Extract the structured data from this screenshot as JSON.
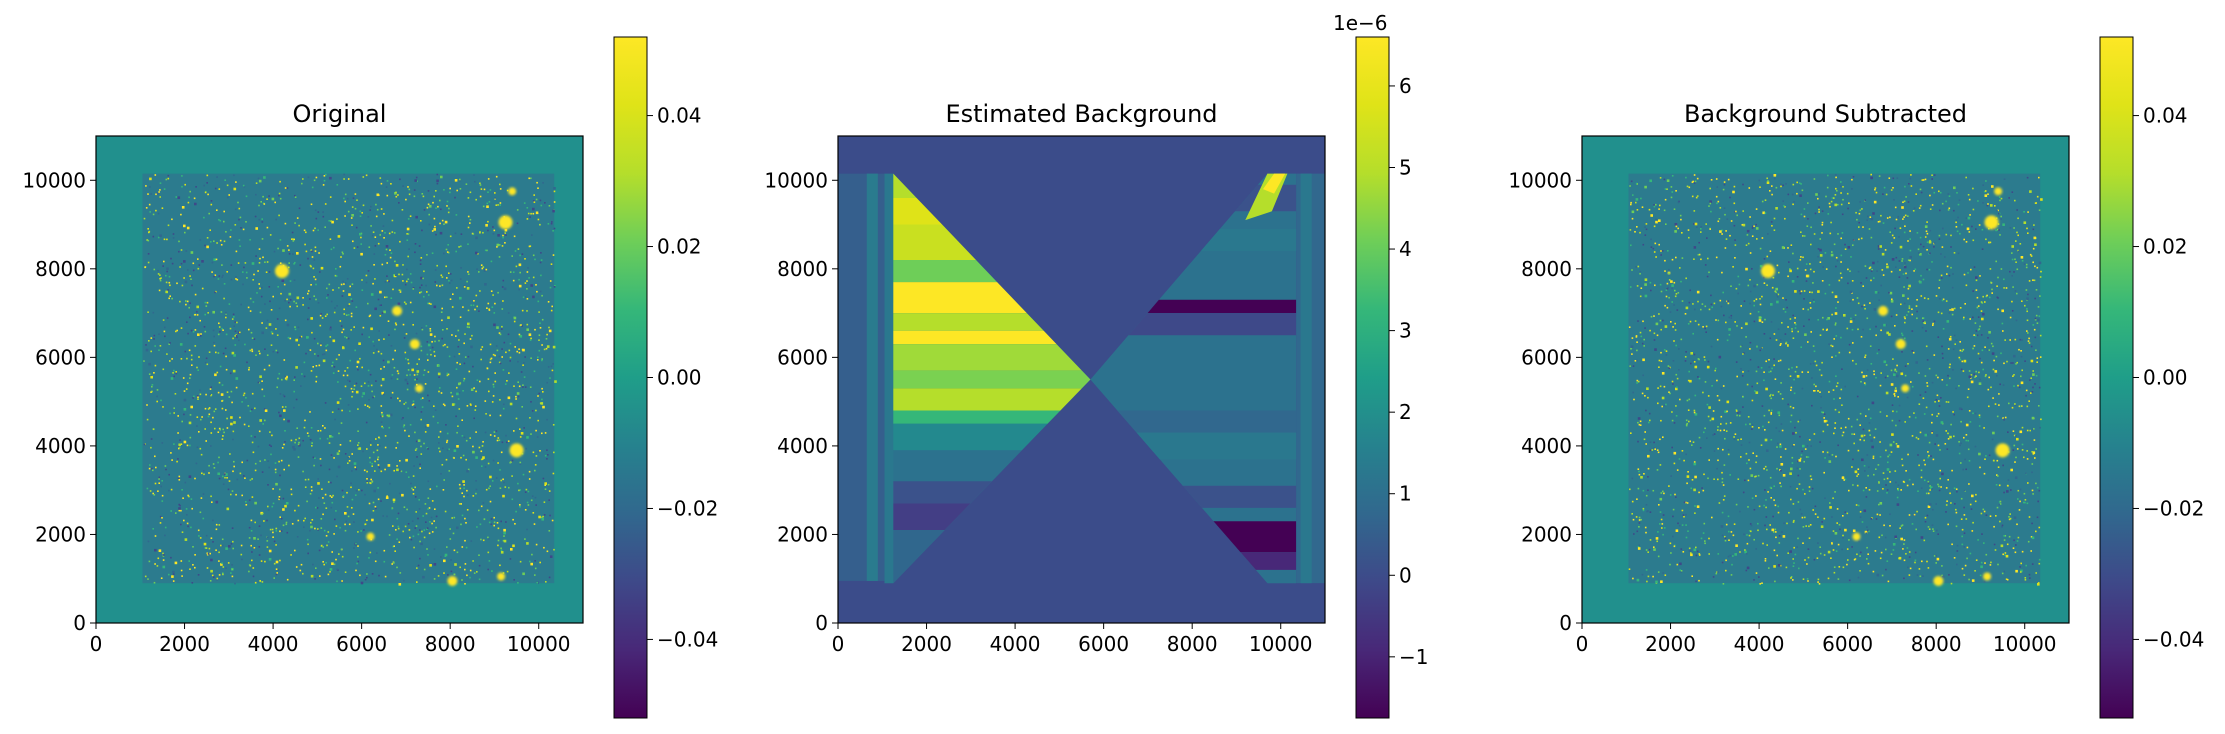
{
  "chart_data": [
    {
      "type": "heatmap",
      "title": "Original",
      "xlim": [
        0,
        11000
      ],
      "ylim": [
        0,
        11000
      ],
      "xticks": [
        "0",
        "2000",
        "4000",
        "6000",
        "8000",
        "10000"
      ],
      "yticks": [
        "0",
        "2000",
        "4000",
        "6000",
        "8000",
        "10000"
      ],
      "colormap": "viridis",
      "colorbar": {
        "range": [
          -0.052,
          0.052
        ],
        "ticks": [
          "−0.04",
          "−0.02",
          "0.00",
          "0.02",
          "0.04"
        ],
        "tick_values": [
          -0.04,
          -0.02,
          0.0,
          0.02,
          0.04
        ],
        "offset_text": ""
      },
      "image_region": {
        "x": [
          1050,
          10350
        ],
        "y": [
          900,
          10150
        ]
      },
      "bright_sources": [
        {
          "x": 9500,
          "y": 3900
        },
        {
          "x": 4200,
          "y": 7950
        },
        {
          "x": 9250,
          "y": 9050
        },
        {
          "x": 8050,
          "y": 950
        },
        {
          "x": 7200,
          "y": 6300
        },
        {
          "x": 6800,
          "y": 7050
        },
        {
          "x": 7300,
          "y": 5300
        },
        {
          "x": 9150,
          "y": 1050
        },
        {
          "x": 6200,
          "y": 1950
        },
        {
          "x": 9400,
          "y": 9750
        }
      ]
    },
    {
      "type": "heatmap",
      "title": "Estimated Background",
      "xlim": [
        0,
        11000
      ],
      "ylim": [
        0,
        11000
      ],
      "xticks": [
        "0",
        "2000",
        "4000",
        "6000",
        "8000",
        "10000"
      ],
      "yticks": [
        "0",
        "2000",
        "4000",
        "6000",
        "8000",
        "10000"
      ],
      "colormap": "viridis",
      "colorbar": {
        "range": [
          -1.75e-06,
          6.6e-06
        ],
        "ticks": [
          "−1",
          "0",
          "1",
          "2",
          "3",
          "4",
          "5",
          "6"
        ],
        "tick_values": [
          -1,
          0,
          1,
          2,
          3,
          4,
          5,
          6
        ],
        "offset_text": "1e−6"
      },
      "image_region": {
        "x": [
          1050,
          10350
        ],
        "y": [
          900,
          10150
        ]
      }
    },
    {
      "type": "heatmap",
      "title": "Background Subtracted",
      "xlim": [
        0,
        11000
      ],
      "ylim": [
        0,
        11000
      ],
      "xticks": [
        "0",
        "2000",
        "4000",
        "6000",
        "8000",
        "10000"
      ],
      "yticks": [
        "0",
        "2000",
        "4000",
        "6000",
        "8000",
        "10000"
      ],
      "colormap": "viridis",
      "colorbar": {
        "range": [
          -0.052,
          0.052
        ],
        "ticks": [
          "−0.04",
          "−0.02",
          "0.00",
          "0.02",
          "0.04"
        ],
        "tick_values": [
          -0.04,
          -0.02,
          0.0,
          0.02,
          0.04
        ],
        "offset_text": ""
      },
      "image_region": {
        "x": [
          1050,
          10350
        ],
        "y": [
          900,
          10150
        ]
      },
      "bright_sources": [
        {
          "x": 9500,
          "y": 3900
        },
        {
          "x": 4200,
          "y": 7950
        },
        {
          "x": 9250,
          "y": 9050
        },
        {
          "x": 8050,
          "y": 950
        },
        {
          "x": 7200,
          "y": 6300
        },
        {
          "x": 6800,
          "y": 7050
        },
        {
          "x": 7300,
          "y": 5300
        },
        {
          "x": 9150,
          "y": 1050
        },
        {
          "x": 6200,
          "y": 1950
        },
        {
          "x": 9400,
          "y": 9750
        }
      ]
    }
  ]
}
